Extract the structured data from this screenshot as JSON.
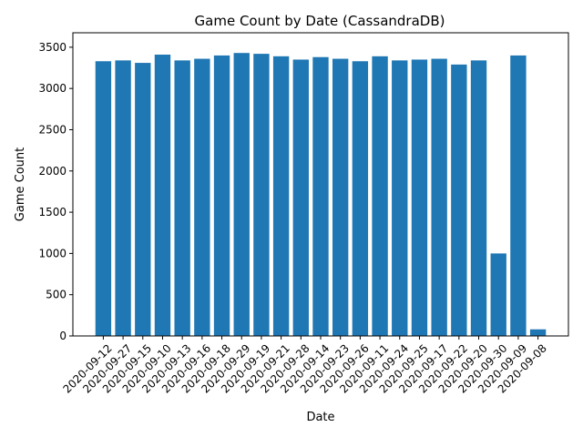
{
  "chart_data": {
    "type": "bar",
    "title": "Game Count by Date (CassandraDB)",
    "xlabel": "Date",
    "ylabel": "Game Count",
    "categories": [
      "2020-09-12",
      "2020-09-27",
      "2020-09-15",
      "2020-09-10",
      "2020-09-13",
      "2020-09-16",
      "2020-09-18",
      "2020-09-29",
      "2020-09-19",
      "2020-09-21",
      "2020-09-28",
      "2020-09-14",
      "2020-09-23",
      "2020-09-26",
      "2020-09-11",
      "2020-09-24",
      "2020-09-25",
      "2020-09-17",
      "2020-09-22",
      "2020-09-20",
      "2020-09-30",
      "2020-09-09",
      "2020-09-08"
    ],
    "values": [
      3330,
      3340,
      3310,
      3410,
      3340,
      3360,
      3400,
      3430,
      3420,
      3390,
      3350,
      3380,
      3360,
      3330,
      3390,
      3340,
      3350,
      3360,
      3290,
      3340,
      1000,
      3400,
      80
    ],
    "ylim": [
      0,
      3500
    ],
    "yticks": [
      0,
      500,
      1000,
      1500,
      2000,
      2500,
      3000,
      3500
    ],
    "grid": false,
    "bar_color": "#1f77b4"
  }
}
